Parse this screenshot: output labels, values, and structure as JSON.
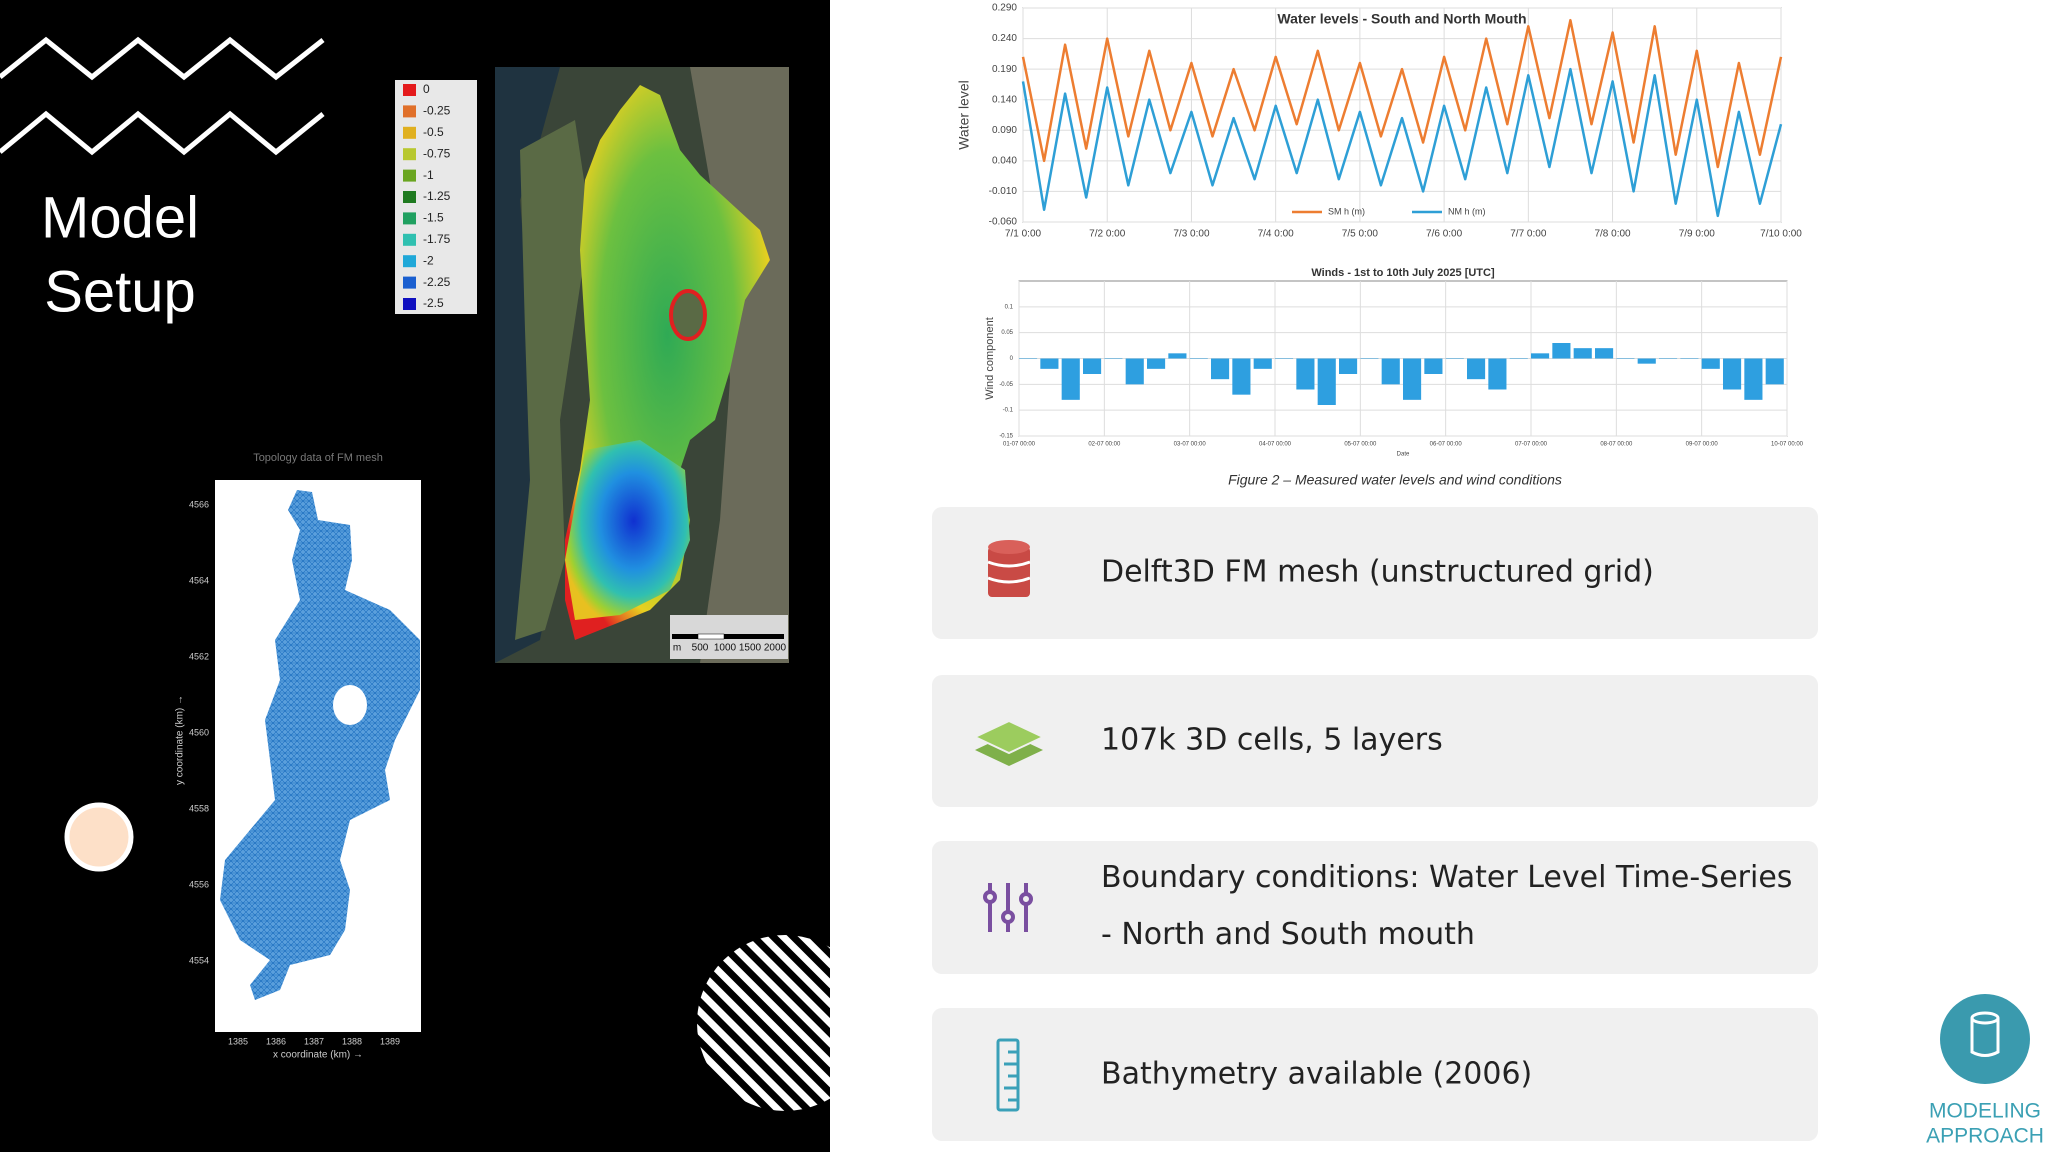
{
  "slide": {
    "title_lines": [
      "Model",
      "Setup"
    ],
    "caption": "Figure 2 – Measured water levels and wind conditions",
    "badge": [
      "MODELING",
      "APPROACH"
    ]
  },
  "bathymetry_legend": [
    {
      "label": 0,
      "color": "#e41a1c"
    },
    {
      "label": -0.25,
      "color": "#e0702a"
    },
    {
      "label": -0.5,
      "color": "#e0b020"
    },
    {
      "label": -0.75,
      "color": "#b8c830"
    },
    {
      "label": -1,
      "color": "#6aa520"
    },
    {
      "label": -1.25,
      "color": "#1f7a20"
    },
    {
      "label": -1.5,
      "color": "#20a060"
    },
    {
      "label": -1.75,
      "color": "#30c0b0"
    },
    {
      "label": -2,
      "color": "#20a8d8"
    },
    {
      "label": -2.25,
      "color": "#1a5fd0"
    },
    {
      "label": -2.5,
      "color": "#1010c0"
    }
  ],
  "scale_bar": [
    "m",
    "500",
    "1000",
    "1500",
    "2000"
  ],
  "mesh_figure": {
    "title": "Topology data of FM mesh",
    "xlabel": "x coordinate (km) →",
    "ylabel": "y coordinate (km) →",
    "xticks": [
      "1385",
      "1386",
      "1387",
      "1388",
      "1389"
    ],
    "yticks": [
      "4566",
      "4564",
      "4562",
      "4560",
      "4558",
      "4556",
      "4554"
    ]
  },
  "cards": [
    {
      "text": [
        "Delft3D FM mesh (unstructured grid)"
      ]
    },
    {
      "text": [
        "107k 3D cells, 5 layers"
      ]
    },
    {
      "text": [
        "Boundary conditions: Water Level Time-Series",
        "- North and South mouth"
      ]
    },
    {
      "text": [
        "Bathymetry available (2006)"
      ]
    }
  ],
  "chart_data": [
    {
      "type": "line",
      "title": "Water levels - South and North Mouth",
      "ylabel": "Water level",
      "x": [
        0,
        0.25,
        0.5,
        0.75,
        1,
        1.25,
        1.5,
        1.75,
        2,
        2.25,
        2.5,
        2.75,
        3,
        3.25,
        3.5,
        3.75,
        4,
        4.25,
        4.5,
        4.75,
        5,
        5.25,
        5.5,
        5.75,
        6,
        6.25,
        6.5,
        6.75,
        7,
        7.25,
        7.5,
        7.75,
        8,
        8.25,
        8.5,
        8.75,
        9
      ],
      "xlim": [
        0,
        9
      ],
      "xticks": [
        {
          "value": 0,
          "label": "7/1 0:00"
        },
        {
          "value": 1,
          "label": "7/2 0:00"
        },
        {
          "value": 2,
          "label": "7/3 0:00"
        },
        {
          "value": 3,
          "label": "7/4 0:00"
        },
        {
          "value": 4,
          "label": "7/5 0:00"
        },
        {
          "value": 5,
          "label": "7/6 0:00"
        },
        {
          "value": 6,
          "label": "7/7 0:00"
        },
        {
          "value": 7,
          "label": "7/8 0:00"
        },
        {
          "value": 8,
          "label": "7/9 0:00"
        },
        {
          "value": 9,
          "label": "7/10 0:00"
        }
      ],
      "ylim": [
        -0.06,
        0.29
      ],
      "yticks": [
        {
          "value": -0.06,
          "label": "-0.060"
        },
        {
          "value": -0.01,
          "label": "-0.010"
        },
        {
          "value": 0.04,
          "label": "0.040"
        },
        {
          "value": 0.09,
          "label": "0.090"
        },
        {
          "value": 0.14,
          "label": "0.140"
        },
        {
          "value": 0.19,
          "label": "0.190"
        },
        {
          "value": 0.24,
          "label": "0.240"
        },
        {
          "value": 0.29,
          "label": "0.290"
        }
      ],
      "grid": true,
      "legend": "bottom",
      "series": [
        {
          "name": "SM h (m)",
          "color": "#ed7d31",
          "values": [
            0.21,
            0.04,
            0.23,
            0.06,
            0.24,
            0.08,
            0.22,
            0.09,
            0.2,
            0.08,
            0.19,
            0.09,
            0.21,
            0.1,
            0.22,
            0.09,
            0.2,
            0.08,
            0.19,
            0.07,
            0.21,
            0.09,
            0.24,
            0.1,
            0.26,
            0.11,
            0.27,
            0.1,
            0.25,
            0.07,
            0.26,
            0.05,
            0.22,
            0.03,
            0.2,
            0.05,
            0.21
          ]
        },
        {
          "name": "NM h (m)",
          "color": "#2e9fd6",
          "values": [
            0.17,
            -0.04,
            0.15,
            -0.02,
            0.16,
            0.0,
            0.14,
            0.02,
            0.12,
            0.0,
            0.11,
            0.01,
            0.13,
            0.02,
            0.14,
            0.01,
            0.12,
            0.0,
            0.11,
            -0.01,
            0.13,
            0.01,
            0.16,
            0.02,
            0.18,
            0.03,
            0.19,
            0.02,
            0.17,
            -0.01,
            0.18,
            -0.03,
            0.14,
            -0.05,
            0.12,
            -0.03,
            0.1
          ]
        }
      ]
    },
    {
      "type": "bar",
      "title": "Winds - 1st to 10th July 2025 [UTC]",
      "ylabel": "Wind component",
      "xlabel": "Date",
      "x": [
        0,
        0.25,
        0.5,
        0.75,
        1,
        1.25,
        1.5,
        1.75,
        2,
        2.25,
        2.5,
        2.75,
        3,
        3.25,
        3.5,
        3.75,
        4,
        4.25,
        4.5,
        4.75,
        5,
        5.25,
        5.5,
        5.75,
        6,
        6.25,
        6.5,
        6.75,
        7,
        7.25,
        7.5,
        7.75,
        8,
        8.25,
        8.5,
        8.75
      ],
      "values": [
        0,
        -0.02,
        -0.08,
        -0.03,
        0,
        -0.05,
        -0.02,
        0.01,
        0,
        -0.04,
        -0.07,
        -0.02,
        0,
        -0.06,
        -0.09,
        -0.03,
        0,
        -0.05,
        -0.08,
        -0.03,
        0,
        -0.04,
        -0.06,
        0,
        0.01,
        0.03,
        0.02,
        0.02,
        0,
        -0.01,
        0,
        0,
        -0.02,
        -0.06,
        -0.08,
        -0.05
      ],
      "color": "#2e9fe0",
      "xlim": [
        0,
        9
      ],
      "xticks": [
        {
          "value": 0,
          "label": "01-07 00:00"
        },
        {
          "value": 1,
          "label": "02-07 00:00"
        },
        {
          "value": 2,
          "label": "03-07 00:00"
        },
        {
          "value": 3,
          "label": "04-07 00:00"
        },
        {
          "value": 4,
          "label": "05-07 00:00"
        },
        {
          "value": 5,
          "label": "06-07 00:00"
        },
        {
          "value": 6,
          "label": "07-07 00:00"
        },
        {
          "value": 7,
          "label": "08-07 00:00"
        },
        {
          "value": 8,
          "label": "09-07 00:00"
        },
        {
          "value": 9,
          "label": "10-07 00:00"
        }
      ],
      "ylim": [
        -0.15,
        0.15
      ],
      "yticks": [
        -0.15,
        -0.1,
        -0.05,
        0,
        0.05,
        0.1
      ],
      "grid": true
    }
  ]
}
